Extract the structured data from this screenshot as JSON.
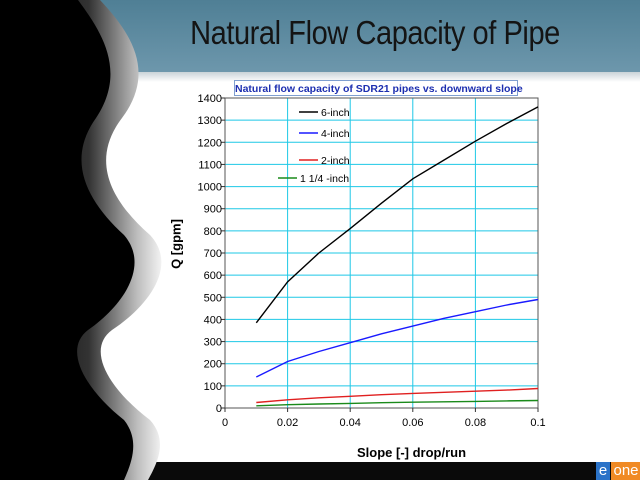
{
  "slide": {
    "title": "Natural Flow Capacity of Pipe",
    "logo_e": "e",
    "logo_one": "one"
  },
  "chart_data": {
    "type": "line",
    "title": "Natural flow capacity of SDR21 pipes vs. downward slope",
    "xlabel": "Slope  [-] drop/run",
    "ylabel": "Q  [gpm]",
    "xlim": [
      0,
      0.1
    ],
    "ylim": [
      0,
      1400
    ],
    "xticks": [
      0,
      0.02,
      0.04,
      0.06,
      0.08,
      0.1
    ],
    "xtick_labels": [
      "0",
      "0.02",
      "0.04",
      "0.06",
      "0.08",
      "0.1"
    ],
    "yticks": [
      0,
      100,
      200,
      300,
      400,
      500,
      600,
      700,
      800,
      900,
      1000,
      1100,
      1200,
      1300,
      1400
    ],
    "ytick_labels": [
      "0",
      "100",
      "200",
      "300",
      "400",
      "500",
      "600",
      "700",
      "800",
      "900",
      "1000",
      "1100",
      "1200",
      "1300",
      "1400"
    ],
    "grid": true,
    "legend_position": "upper-left",
    "x": [
      0.01,
      0.02,
      0.03,
      0.04,
      0.05,
      0.06,
      0.07,
      0.08,
      0.09,
      0.1
    ],
    "series": [
      {
        "name": "6-inch",
        "color": "#000000",
        "values": [
          385,
          570,
          700,
          810,
          925,
          1035,
          1120,
          1205,
          1285,
          1360
        ]
      },
      {
        "name": "4-inch",
        "color": "#1a1aff",
        "values": [
          140,
          210,
          255,
          295,
          335,
          370,
          405,
          435,
          465,
          490
        ]
      },
      {
        "name": "2-inch",
        "color": "#e02020",
        "values": [
          25,
          37,
          46,
          53,
          60,
          66,
          71,
          76,
          81,
          88
        ]
      },
      {
        "name": "1 1/4 -inch",
        "color": "#1a8a1a",
        "values": [
          10,
          15,
          18,
          21,
          24,
          26,
          28,
          30,
          32,
          34
        ]
      }
    ]
  }
}
